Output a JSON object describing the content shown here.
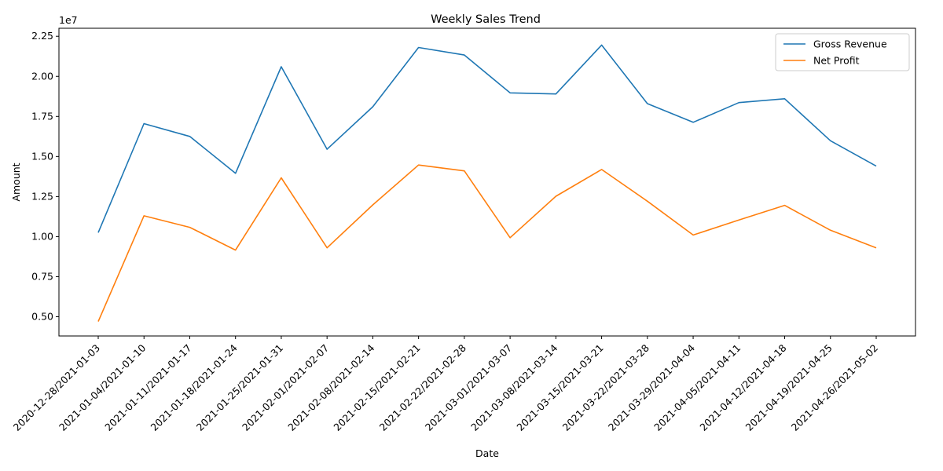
{
  "chart_data": {
    "type": "line",
    "title": "Weekly Sales Trend",
    "xlabel": "Date",
    "ylabel": "Amount",
    "y_offset_label": "1e7",
    "ylim": [
      3800000,
      23000000
    ],
    "y_ticks": [
      5000000,
      7500000,
      10000000,
      12500000,
      15000000,
      17500000,
      20000000,
      22500000
    ],
    "y_tick_labels": [
      "0.50",
      "0.75",
      "1.00",
      "1.25",
      "1.50",
      "1.75",
      "2.00",
      "2.25"
    ],
    "categories": [
      "2020-12-28/2021-01-03",
      "2021-01-04/2021-01-10",
      "2021-01-11/2021-01-17",
      "2021-01-18/2021-01-24",
      "2021-01-25/2021-01-31",
      "2021-02-01/2021-02-07",
      "2021-02-08/2021-02-14",
      "2021-02-15/2021-02-21",
      "2021-02-22/2021-02-28",
      "2021-03-01/2021-03-07",
      "2021-03-08/2021-03-14",
      "2021-03-15/2021-03-21",
      "2021-03-22/2021-03-28",
      "2021-03-29/2021-04-04",
      "2021-04-05/2021-04-11",
      "2021-04-12/2021-04-18",
      "2021-04-19/2021-04-25",
      "2021-04-26/2021-05-02"
    ],
    "series": [
      {
        "name": "Gross Revenue",
        "color": "#1f77b4",
        "values": [
          10250000,
          17050000,
          16250000,
          13950000,
          20600000,
          15450000,
          18100000,
          21800000,
          21330000,
          18970000,
          18900000,
          21950000,
          18300000,
          17130000,
          18360000,
          18600000,
          15980000,
          14400000
        ]
      },
      {
        "name": "Net Profit",
        "color": "#ff7f0e",
        "values": [
          4700000,
          11300000,
          10580000,
          9160000,
          13670000,
          9300000,
          11980000,
          14470000,
          14100000,
          9930000,
          12520000,
          14190000,
          12210000,
          10100000,
          11040000,
          11950000,
          10400000,
          9300000
        ]
      }
    ],
    "legend_position": "top-right",
    "grid": false
  }
}
